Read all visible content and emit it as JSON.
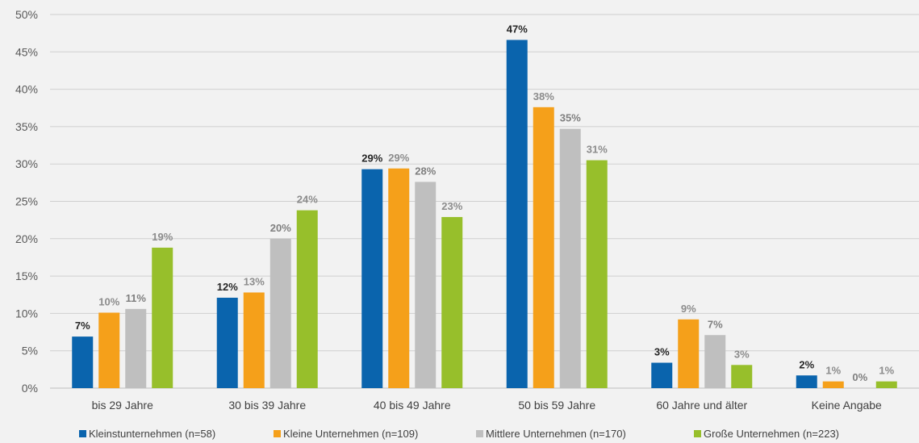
{
  "chart_data": {
    "type": "bar",
    "categories": [
      "bis 29 Jahre",
      "30 bis 39 Jahre",
      "40 bis 49 Jahre",
      "50 bis 59 Jahre",
      "60 Jahre und älter",
      "Keine Angabe"
    ],
    "series": [
      {
        "name": "Kleinstunternehmen (n=58)",
        "color": "#0a64ad",
        "labelColor": "#262626",
        "values": [
          6.9,
          12.1,
          29.3,
          46.6,
          3.4,
          1.7
        ],
        "labels": [
          "7%",
          "12%",
          "29%",
          "47%",
          "3%",
          "2%"
        ]
      },
      {
        "name": "Kleine Unternehmen (n=109)",
        "color": "#f5a01a",
        "labelColor": "#8c8c8c",
        "values": [
          10.1,
          12.8,
          29.4,
          37.6,
          9.2,
          0.9
        ],
        "labels": [
          "10%",
          "13%",
          "29%",
          "38%",
          "9%",
          "1%"
        ]
      },
      {
        "name": "Mittlere Unternehmen (n=170)",
        "color": "#bfbfbf",
        "labelColor": "#7f7f7f",
        "values": [
          10.6,
          20.0,
          27.6,
          34.7,
          7.1,
          0.0
        ],
        "labels": [
          "11%",
          "20%",
          "28%",
          "35%",
          "7%",
          "0%"
        ]
      },
      {
        "name": "Große Unternehmen (n=223)",
        "color": "#97bf2b",
        "labelColor": "#8c8c8c",
        "values": [
          18.8,
          23.8,
          22.9,
          30.5,
          3.1,
          0.9
        ],
        "labels": [
          "19%",
          "24%",
          "23%",
          "31%",
          "3%",
          "1%"
        ]
      }
    ],
    "yticks": [
      "0%",
      "5%",
      "10%",
      "15%",
      "20%",
      "25%",
      "30%",
      "35%",
      "40%",
      "45%",
      "50%"
    ],
    "ylim": [
      0,
      50
    ],
    "grid": true,
    "legend": "bottom"
  }
}
